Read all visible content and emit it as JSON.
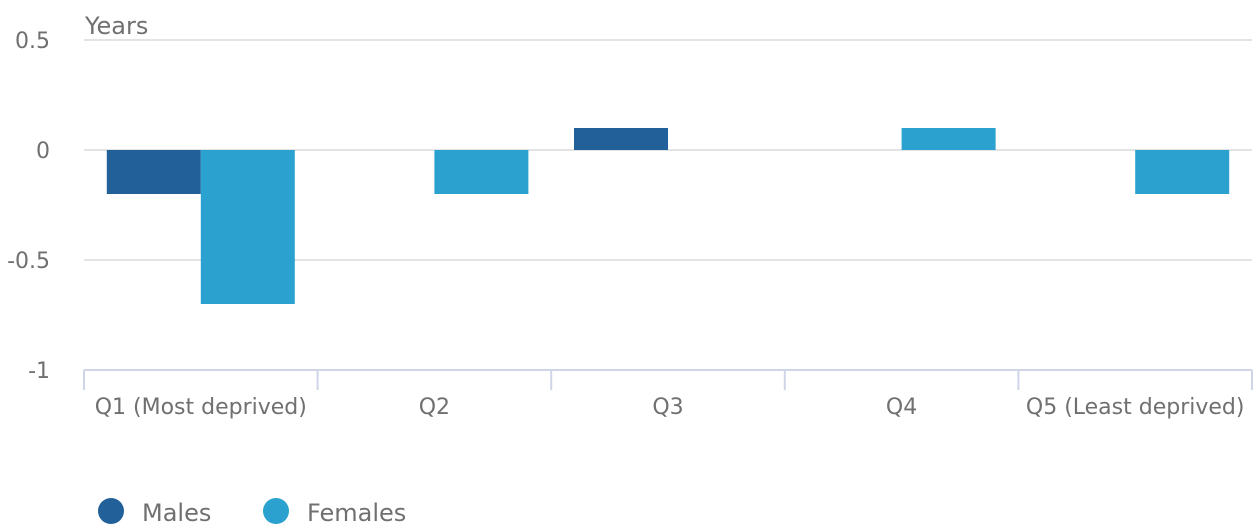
{
  "chart_data": {
    "type": "bar",
    "title": "",
    "ylabel": "Years",
    "xlabel": "",
    "categories": [
      "Q1 (Most deprived)",
      "Q2",
      "Q3",
      "Q4",
      "Q5 (Least deprived)"
    ],
    "series": [
      {
        "name": "Males",
        "color": "#22609A",
        "values": [
          -0.2,
          0,
          0.1,
          0,
          0
        ]
      },
      {
        "name": "Females",
        "color": "#2AA1CE",
        "values": [
          -0.7,
          -0.2,
          0,
          0.1,
          -0.2
        ]
      }
    ],
    "ylim": [
      -1,
      0.5
    ],
    "yticks": [
      0.5,
      0,
      -0.5,
      -1
    ],
    "ytick_labels": [
      "0.5",
      "0",
      "-0.5",
      "-1"
    ],
    "grid": true,
    "legend_position": "bottom-left"
  }
}
